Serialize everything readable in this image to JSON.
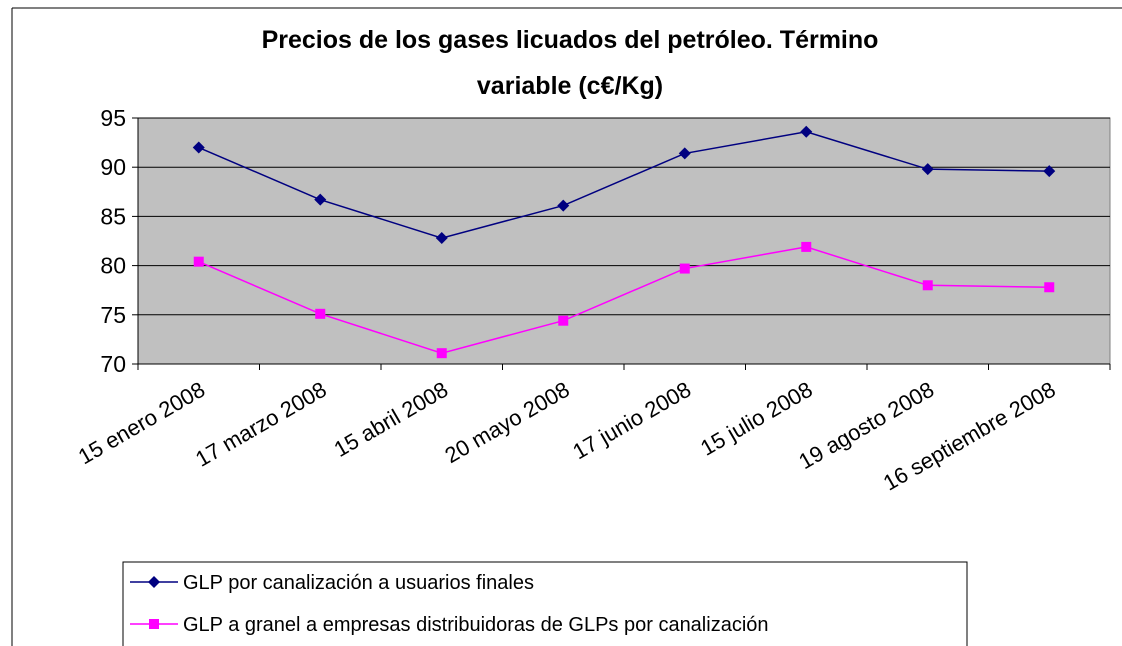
{
  "chart_data": {
    "type": "line",
    "title": [
      "Precios de los gases licuados del petróleo. Término",
      "variable (c€/Kg)"
    ],
    "categories": [
      "15 enero 2008",
      "17 marzo 2008",
      "15 abril 2008",
      "20 mayo 2008",
      "17 junio 2008",
      "15 julio 2008",
      "19 agosto 2008",
      "16 septiembre 2008"
    ],
    "series": [
      {
        "name": "GLP por canalización a usuarios finales",
        "color": "#000080",
        "marker": "diamond",
        "values": [
          92.0,
          86.7,
          82.8,
          86.1,
          91.4,
          93.6,
          89.8,
          89.6
        ]
      },
      {
        "name": "GLP a granel a empresas distribuidoras de GLPs por canalización",
        "color": "#ff00ff",
        "marker": "square",
        "values": [
          80.4,
          75.1,
          71.1,
          74.4,
          79.7,
          81.9,
          78.0,
          77.8
        ]
      }
    ],
    "ylim": [
      70,
      95
    ],
    "yticks": [
      70,
      75,
      80,
      85,
      90,
      95
    ],
    "grid": true,
    "plot_background": "#c0c0c0",
    "legend": "bottom"
  }
}
